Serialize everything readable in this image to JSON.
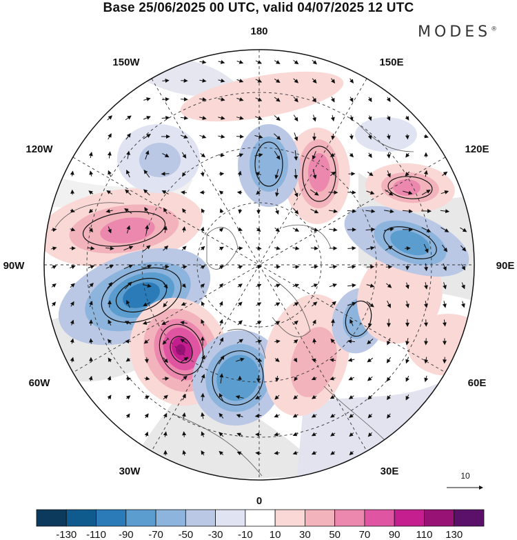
{
  "title": "Base 25/06/2025 00 UTC, valid 04/07/2025 12 UTC",
  "brand": {
    "name": "MODES",
    "mark": "®"
  },
  "map": {
    "projection": "north polar stereographic",
    "longitude_labels": {
      "top": "180",
      "top_left": "150W",
      "top_right": "150E",
      "upper_left": "120W",
      "upper_right": "120E",
      "left": "90W",
      "right": "90E",
      "lower_left": "60W",
      "lower_right": "60E",
      "bottom_left": "30W",
      "bottom_right": "30E",
      "bottom": "0"
    },
    "reference_vector": "10"
  },
  "colorbar": {
    "colors": [
      "#0b3a5c",
      "#0f5b8d",
      "#2a7bb8",
      "#5b9dcf",
      "#8db4dd",
      "#bac8e6",
      "#e0e3f2",
      "#ffffff",
      "#f9d8d6",
      "#f3b3bc",
      "#ec88ae",
      "#df55a1",
      "#c41e8f",
      "#981175",
      "#5b1169"
    ],
    "tick_labels": [
      "-130",
      "-110",
      "-90",
      "-70",
      "-50",
      "-30",
      "-10",
      "10",
      "30",
      "50",
      "70",
      "90",
      "110",
      "130"
    ]
  },
  "colors": {
    "land_gray": "#e8e8e8",
    "contour": "#111111",
    "grid": "#333333"
  }
}
